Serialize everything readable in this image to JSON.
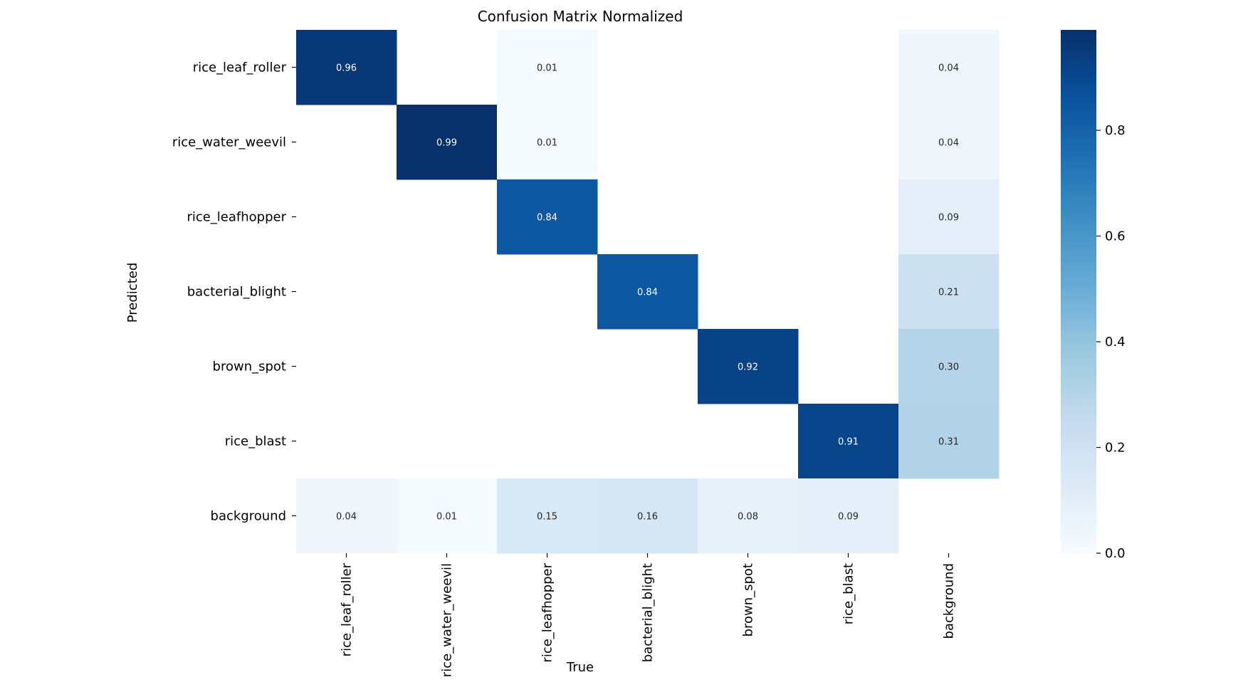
{
  "chart_data": {
    "type": "heatmap",
    "title": "Confusion Matrix Normalized",
    "xlabel": "True",
    "ylabel": "Predicted",
    "x_categories": [
      "rice_leaf_roller",
      "rice_water_weevil",
      "rice_leafhopper",
      "bacterial_blight",
      "brown_spot",
      "rice_blast",
      "background"
    ],
    "y_categories": [
      "rice_leaf_roller",
      "rice_water_weevil",
      "rice_leafhopper",
      "bacterial_blight",
      "brown_spot",
      "rice_blast",
      "background"
    ],
    "values": [
      [
        0.96,
        null,
        0.01,
        null,
        null,
        null,
        0.04
      ],
      [
        null,
        0.99,
        0.01,
        null,
        null,
        null,
        0.04
      ],
      [
        null,
        null,
        0.84,
        null,
        null,
        null,
        0.09
      ],
      [
        null,
        null,
        null,
        0.84,
        null,
        null,
        0.21
      ],
      [
        null,
        null,
        null,
        null,
        0.92,
        null,
        0.3
      ],
      [
        null,
        null,
        null,
        null,
        null,
        0.91,
        0.31
      ],
      [
        0.04,
        0.01,
        0.15,
        0.16,
        0.08,
        0.09,
        null
      ]
    ],
    "value_labels": [
      [
        "0.96",
        "",
        "0.01",
        "",
        "",
        "",
        "0.04"
      ],
      [
        "",
        "0.99",
        "0.01",
        "",
        "",
        "",
        "0.04"
      ],
      [
        "",
        "",
        "0.84",
        "",
        "",
        "",
        "0.09"
      ],
      [
        "",
        "",
        "",
        "0.84",
        "",
        "",
        "0.21"
      ],
      [
        "",
        "",
        "",
        "",
        "0.92",
        "",
        "0.30"
      ],
      [
        "",
        "",
        "",
        "",
        "",
        "0.91",
        "0.31"
      ],
      [
        "0.04",
        "0.01",
        "0.15",
        "0.16",
        "0.08",
        "0.09",
        ""
      ]
    ],
    "colorbar": {
      "range": [
        0,
        0.99
      ],
      "ticks": [
        0.0,
        0.2,
        0.4,
        0.6,
        0.8
      ],
      "tick_labels": [
        "0.0",
        "0.2",
        "0.4",
        "0.6",
        "0.8"
      ],
      "colormap": "Blues"
    },
    "colors": [
      "#f7fbff",
      "#deebf7",
      "#c6dbef",
      "#9ecae1",
      "#6baed6",
      "#4292c6",
      "#2171b5",
      "#08519c",
      "#08306b"
    ]
  }
}
